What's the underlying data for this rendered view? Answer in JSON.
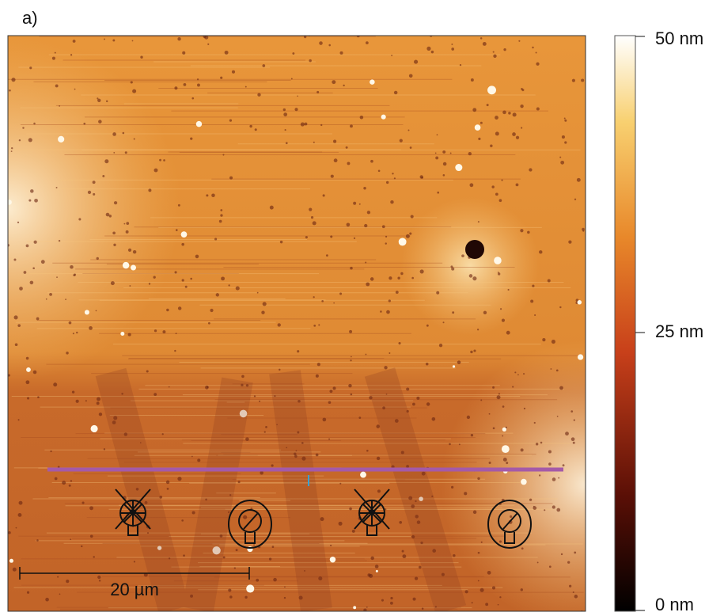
{
  "panel_label": "a)",
  "colorbar": {
    "labels": [
      "50 nm",
      "25 nm",
      "0 nm"
    ]
  },
  "scale_bar": {
    "label": "20 µm"
  }
}
